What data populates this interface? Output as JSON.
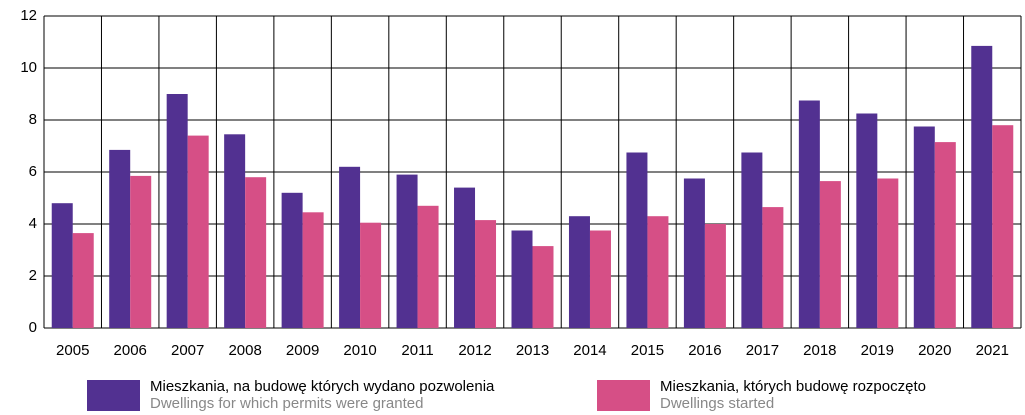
{
  "chart_data": {
    "type": "bar",
    "categories": [
      "2005",
      "2006",
      "2007",
      "2008",
      "2009",
      "2010",
      "2011",
      "2012",
      "2013",
      "2014",
      "2015",
      "2016",
      "2017",
      "2018",
      "2019",
      "2020",
      "2021"
    ],
    "series": [
      {
        "name": "Mieszkania, na budowę których wydano pozwolenia",
        "name_en": "Dwellings for which permits were granted",
        "color": "#523191",
        "values": [
          4.8,
          6.85,
          9.0,
          7.45,
          5.2,
          6.2,
          5.9,
          5.4,
          3.75,
          4.3,
          6.75,
          5.75,
          6.75,
          8.75,
          8.25,
          7.75,
          10.85
        ]
      },
      {
        "name": "Mieszkania, których budowę rozpoczęto",
        "name_en": "Dwellings started",
        "color": "#d64f86",
        "values": [
          3.65,
          5.85,
          7.4,
          5.8,
          4.45,
          4.05,
          4.7,
          4.15,
          3.15,
          3.75,
          4.3,
          4.0,
          4.65,
          5.65,
          5.75,
          7.15,
          7.8
        ]
      }
    ],
    "ylim": [
      0,
      12
    ],
    "yticks": [
      0,
      2,
      4,
      6,
      8,
      10,
      12
    ],
    "grid": true
  }
}
